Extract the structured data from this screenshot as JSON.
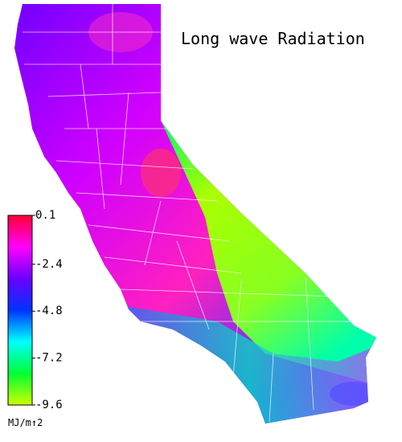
{
  "title": "Long wave Radiation",
  "colorbar": {
    "lim": [
      -9.6,
      0.1
    ],
    "ticks": [
      0.1,
      -2.4,
      -4.8,
      -7.2,
      -9.6
    ],
    "unit": "MJ/m↑2",
    "colors": [
      "#ff0033",
      "#ff00ff",
      "#6a00ff",
      "#0033ff",
      "#00ffff",
      "#00ff33",
      "#ccff00"
    ]
  }
}
